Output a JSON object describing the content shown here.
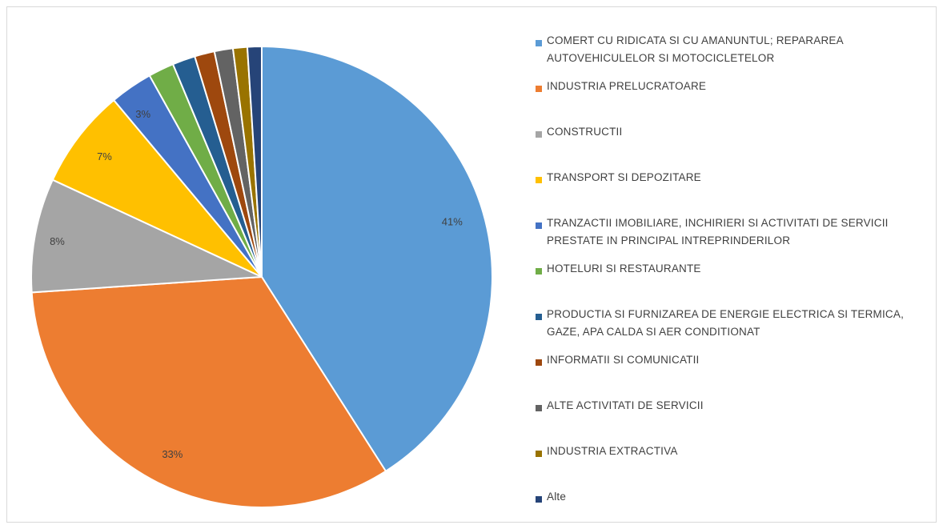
{
  "chart_data": {
    "type": "pie",
    "title": "",
    "slices": [
      {
        "label": "COMERT CU RIDICATA SI CU AMANUNTUL; REPARAREA AUTOVEHICULELOR SI MOTOCICLETELOR",
        "value": 41,
        "value_label": "41%",
        "color": "#5b9bd5"
      },
      {
        "label": "INDUSTRIA PRELUCRATOARE",
        "value": 33,
        "value_label": "33%",
        "color": "#ed7d31"
      },
      {
        "label": "CONSTRUCTII",
        "value": 8,
        "value_label": "8%",
        "color": "#a5a5a5"
      },
      {
        "label": "TRANSPORT SI DEPOZITARE",
        "value": 7,
        "value_label": "7%",
        "color": "#ffc000"
      },
      {
        "label": "TRANZACTII IMOBILIARE, INCHIRIERI SI ACTIVITATI DE SERVICII PRESTATE IN PRINCIPAL INTREPRINDERILOR",
        "value": 3,
        "value_label": "3%",
        "color": "#4472c4"
      },
      {
        "label": "HOTELURI SI RESTAURANTE",
        "value": 1.8,
        "value_label": "",
        "color": "#70ad47"
      },
      {
        "label": "PRODUCTIA SI FURNIZAREA DE ENERGIE ELECTRICA SI TERMICA, GAZE, APA CALDA SI AER CONDITIONAT",
        "value": 1.6,
        "value_label": "",
        "color": "#255e91"
      },
      {
        "label": "INFORMATII SI COMUNICATII",
        "value": 1.4,
        "value_label": "",
        "color": "#9e480e"
      },
      {
        "label": "ALTE ACTIVITATI DE SERVICII",
        "value": 1.3,
        "value_label": "",
        "color": "#636363"
      },
      {
        "label": "INDUSTRIA EXTRACTIVA",
        "value": 1.0,
        "value_label": "",
        "color": "#997300"
      },
      {
        "label": "Alte",
        "value": 1.0,
        "value_label": "",
        "color": "#264478"
      }
    ],
    "legend": "right",
    "start_angle": "12 o'clock",
    "direction": "clockwise"
  }
}
